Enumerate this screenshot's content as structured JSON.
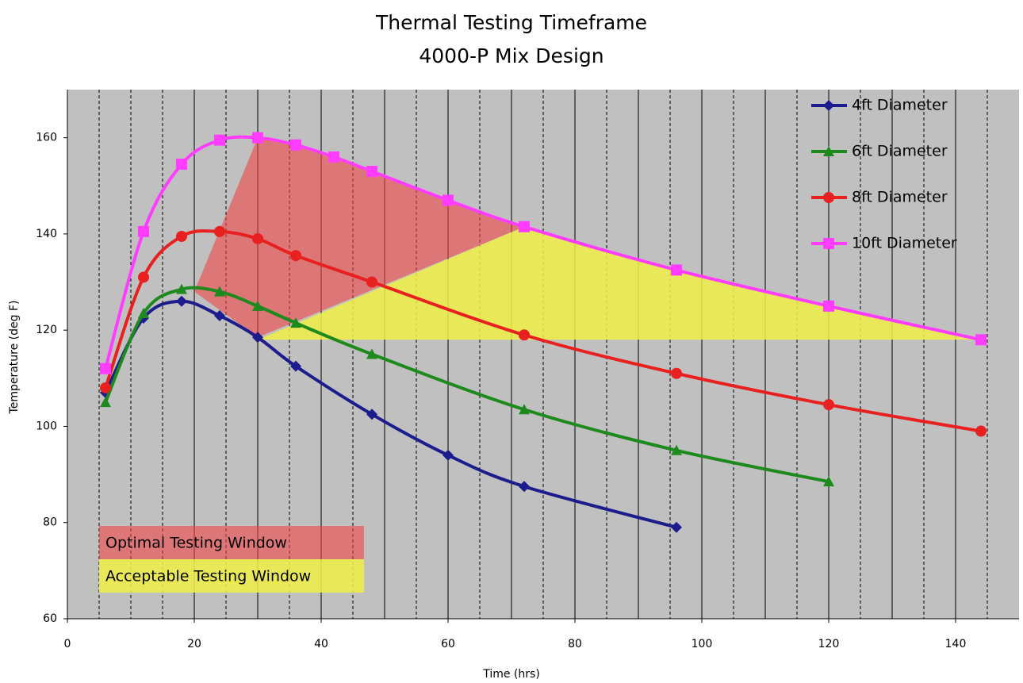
{
  "chart_data": {
    "type": "line",
    "title": "Thermal Testing Timeframe",
    "subtitle": "4000-P Mix Design",
    "x_label": "Time (hrs)",
    "y_label": "Temperature (deg F)",
    "xlim": [
      0,
      150
    ],
    "ylim": [
      60,
      170
    ],
    "xticks": [
      0,
      20,
      40,
      60,
      80,
      100,
      120,
      140
    ],
    "yticks": [
      60,
      80,
      100,
      120,
      140,
      160
    ],
    "xgrid_solid": [
      20,
      30,
      40,
      50,
      60,
      70,
      80,
      90,
      100,
      110,
      120,
      130,
      140
    ],
    "xgrid_dashed": [
      5,
      10,
      15,
      25,
      35,
      45,
      55,
      65,
      75,
      85,
      95,
      105,
      115,
      125,
      135,
      145
    ],
    "background": "#c0c0c0",
    "regions": [
      {
        "name": "Optimal Testing Window",
        "color": "rgba(240,70,70,0.6)",
        "points": [
          [
            20,
            128
          ],
          [
            30,
            160
          ],
          [
            36,
            158.5
          ],
          [
            42,
            156
          ],
          [
            48,
            153
          ],
          [
            60,
            147
          ],
          [
            72,
            141.5
          ],
          [
            30,
            118.5
          ]
        ]
      },
      {
        "name": "Acceptable Testing Window",
        "color": "rgba(238,238,70,0.85)",
        "points": [
          [
            30,
            118
          ],
          [
            72,
            141.5
          ],
          [
            96,
            132.5
          ],
          [
            120,
            125
          ],
          [
            144,
            118
          ]
        ]
      }
    ],
    "series": [
      {
        "name": "4ft Diameter",
        "color": "#1c1c8c",
        "marker": "diamond",
        "x": [
          6,
          12,
          18,
          24,
          30,
          36,
          48,
          60,
          72,
          96
        ],
        "values": [
          107,
          122.5,
          126,
          123,
          118.5,
          112.5,
          102.5,
          94,
          87.5,
          79
        ]
      },
      {
        "name": "6ft Diameter",
        "color": "#1e8a1e",
        "marker": "triangle",
        "x": [
          6,
          12,
          18,
          24,
          30,
          36,
          48,
          72,
          96,
          120
        ],
        "values": [
          105,
          123.5,
          128.5,
          128,
          125,
          121.5,
          115,
          103.5,
          95,
          88.5
        ]
      },
      {
        "name": "8ft Diameter",
        "color": "#e82020",
        "marker": "circle",
        "x": [
          6,
          12,
          18,
          24,
          30,
          36,
          48,
          72,
          96,
          120,
          144
        ],
        "values": [
          108,
          131,
          139.5,
          140.5,
          139,
          135.5,
          130,
          119,
          111,
          104.5,
          99
        ]
      },
      {
        "name": "10ft Diameter",
        "color": "#ff3cff",
        "marker": "square",
        "x": [
          6,
          12,
          18,
          24,
          30,
          36,
          42,
          48,
          60,
          72,
          96,
          120,
          144
        ],
        "values": [
          112,
          140.5,
          154.5,
          159.5,
          160,
          158.5,
          156,
          153,
          147,
          141.5,
          132.5,
          125,
          118
        ]
      }
    ]
  }
}
